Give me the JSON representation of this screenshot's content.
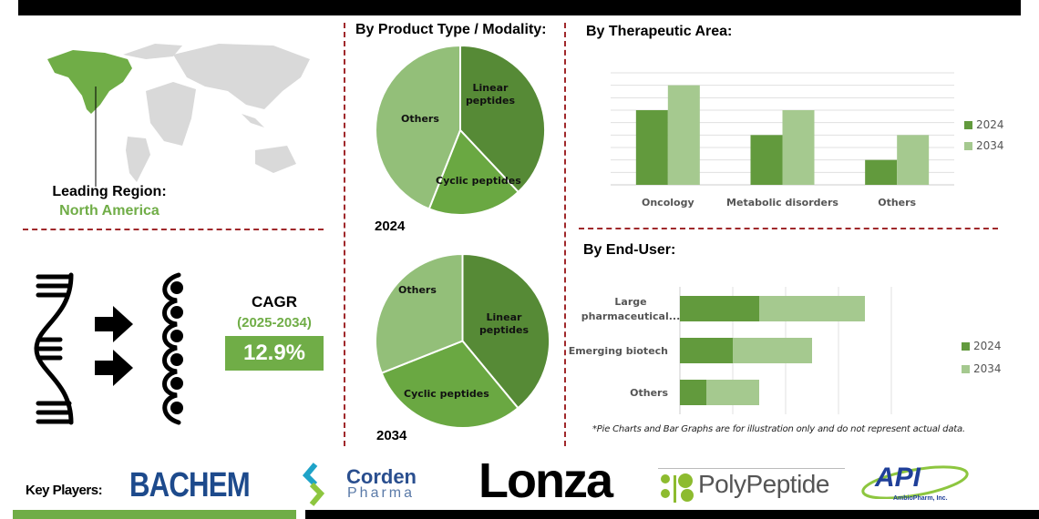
{
  "colors": {
    "dark_green": "#629a3d",
    "light_green": "#a5c98f",
    "pie_dark": "#568a36",
    "pie_mid": "#6aa842",
    "pie_light": "#93bf79",
    "accent_green": "#70ad47",
    "divider_red": "#a0282b"
  },
  "region": {
    "label": "Leading Region:",
    "value": "North America"
  },
  "cagr": {
    "label": "CAGR",
    "period": "(2025-2034)",
    "value": "12.9%"
  },
  "product_type": {
    "title": "By Product Type / Modality:"
  },
  "therapeutic": {
    "title": "By Therapeutic Area:"
  },
  "end_user": {
    "title": "By End-User:"
  },
  "footnote": "*Pie Charts and Bar Graphs are for illustration only and do not represent actual data.",
  "key_players": {
    "label": "Key Players:",
    "logos": [
      "BACHEM",
      "Corden",
      "Pharma",
      "Lonza",
      "PolyPeptide",
      "API",
      "AmbioPharm, Inc."
    ]
  },
  "chart_data": [
    {
      "type": "pie",
      "title": "2024",
      "categories": [
        "Linear peptides",
        "Cyclic peptides",
        "Others"
      ],
      "values": [
        38,
        18,
        44
      ]
    },
    {
      "type": "pie",
      "title": "2034",
      "categories": [
        "Linear peptides",
        "Cyclic peptides",
        "Others"
      ],
      "values": [
        39,
        30,
        31
      ]
    },
    {
      "type": "bar",
      "orientation": "vertical",
      "categories": [
        "Oncology",
        "Metabolic disorders",
        "Others"
      ],
      "series": [
        {
          "name": "2024",
          "values": [
            6,
            4,
            2
          ]
        },
        {
          "name": "2034",
          "values": [
            8,
            6,
            4
          ]
        }
      ],
      "ylim": [
        0,
        9
      ],
      "grid": true,
      "legend": "right"
    },
    {
      "type": "bar",
      "orientation": "horizontal",
      "stacked": true,
      "categories": [
        "Large pharmaceutical...",
        "Emerging biotech",
        "Others"
      ],
      "series": [
        {
          "name": "2024",
          "values": [
            1.5,
            1,
            0.5
          ]
        },
        {
          "name": "2034",
          "values": [
            2,
            1.5,
            1
          ]
        }
      ],
      "xlim": [
        0,
        4
      ],
      "grid": true,
      "legend": "right"
    }
  ]
}
